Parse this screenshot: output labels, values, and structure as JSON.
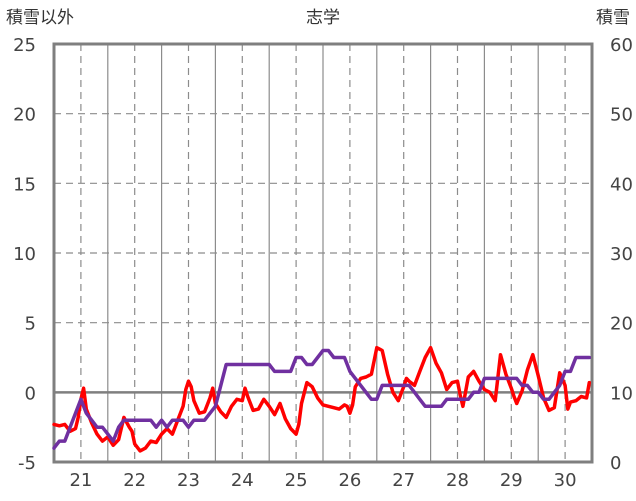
{
  "chart_data": {
    "type": "line",
    "title": "志学",
    "left_axis_label": "積雪以外",
    "right_axis_label": "積雪",
    "left_ylim": [
      -5,
      25
    ],
    "left_ticks": [
      "25",
      "20",
      "15",
      "10",
      "5",
      "0",
      "-5"
    ],
    "right_ylim": [
      0,
      60
    ],
    "right_ticks": [
      "60",
      "50",
      "40",
      "30",
      "20",
      "10",
      "0"
    ],
    "xlim": [
      20.5,
      30.5
    ],
    "x_ticks": [
      "21",
      "22",
      "23",
      "24",
      "25",
      "26",
      "27",
      "28",
      "29",
      "30"
    ],
    "grid": true,
    "series": [
      {
        "axis": "left",
        "color": "#ff0000",
        "x": [
          20.5,
          20.6,
          20.7,
          20.8,
          20.9,
          20.95,
          21.0,
          21.05,
          21.1,
          21.2,
          21.3,
          21.4,
          21.5,
          21.6,
          21.7,
          21.8,
          21.9,
          21.95,
          22.0,
          22.1,
          22.2,
          22.3,
          22.4,
          22.5,
          22.6,
          22.7,
          22.8,
          22.9,
          22.95,
          23.0,
          23.05,
          23.1,
          23.2,
          23.3,
          23.4,
          23.45,
          23.5,
          23.6,
          23.7,
          23.8,
          23.9,
          24.0,
          24.05,
          24.1,
          24.2,
          24.3,
          24.4,
          24.5,
          24.6,
          24.7,
          24.8,
          24.9,
          25.0,
          25.05,
          25.1,
          25.2,
          25.3,
          25.4,
          25.5,
          25.6,
          25.7,
          25.8,
          25.9,
          25.95,
          26.0,
          26.05,
          26.1,
          26.2,
          26.3,
          26.4,
          26.5,
          26.6,
          26.7,
          26.8,
          26.9,
          27.0,
          27.05,
          27.1,
          27.2,
          27.3,
          27.4,
          27.5,
          27.6,
          27.7,
          27.8,
          27.9,
          28.0,
          28.05,
          28.1,
          28.2,
          28.3,
          28.4,
          28.5,
          28.6,
          28.7,
          28.8,
          28.9,
          29.0,
          29.05,
          29.1,
          29.2,
          29.3,
          29.4,
          29.5,
          29.6,
          29.7,
          29.8,
          29.9,
          30.0,
          30.05,
          30.1,
          30.2,
          30.3,
          30.4,
          30.45
        ],
        "y": [
          -2.3,
          -2.4,
          -2.3,
          -2.8,
          -2.6,
          -1.8,
          -0.5,
          0.3,
          -1.2,
          -2.2,
          -3.0,
          -3.5,
          -3.2,
          -3.8,
          -3.4,
          -1.8,
          -2.5,
          -2.8,
          -3.7,
          -4.2,
          -4.0,
          -3.5,
          -3.6,
          -3.0,
          -2.6,
          -3.0,
          -2.0,
          -1.0,
          0.2,
          0.8,
          0.4,
          -0.6,
          -1.5,
          -1.4,
          -0.4,
          0.3,
          -0.8,
          -1.4,
          -1.8,
          -1.0,
          -0.5,
          -0.6,
          0.3,
          -0.3,
          -1.3,
          -1.2,
          -0.5,
          -1.0,
          -1.6,
          -0.8,
          -1.9,
          -2.6,
          -3.0,
          -2.3,
          -0.8,
          0.7,
          0.4,
          -0.4,
          -0.9,
          -1.0,
          -1.1,
          -1.2,
          -0.9,
          -1.0,
          -1.5,
          -0.9,
          0.4,
          1.0,
          1.1,
          1.3,
          3.2,
          3.0,
          1.3,
          0.0,
          -0.6,
          0.4,
          1.0,
          0.8,
          0.5,
          1.5,
          2.5,
          3.2,
          2.1,
          1.4,
          0.2,
          0.7,
          0.8,
          -0.2,
          -1.0,
          1.1,
          1.5,
          0.8,
          0.2,
          0.0,
          -0.6,
          2.7,
          1.3,
          0.3,
          -0.3,
          -0.8,
          0.1,
          1.6,
          2.7,
          1.2,
          -0.4,
          -1.3,
          -1.1,
          1.4,
          0.5,
          -1.2,
          -0.7,
          -0.6,
          -0.3,
          -0.4,
          0.7
        ]
      },
      {
        "axis": "right",
        "color": "#7030a0",
        "x": [
          20.5,
          20.6,
          20.7,
          20.8,
          20.9,
          21.0,
          21.1,
          21.2,
          21.3,
          21.4,
          21.5,
          21.6,
          21.7,
          21.8,
          21.9,
          22.0,
          22.1,
          22.2,
          22.3,
          22.4,
          22.5,
          22.6,
          22.7,
          22.8,
          22.9,
          23.0,
          23.1,
          23.2,
          23.3,
          23.4,
          23.5,
          23.6,
          23.7,
          23.8,
          23.9,
          24.0,
          24.1,
          24.2,
          24.3,
          24.4,
          24.5,
          24.6,
          24.7,
          24.8,
          24.9,
          25.0,
          25.1,
          25.2,
          25.3,
          25.4,
          25.5,
          25.6,
          25.7,
          25.8,
          25.9,
          26.0,
          26.1,
          26.2,
          26.3,
          26.4,
          26.5,
          26.6,
          26.7,
          26.8,
          26.9,
          27.0,
          27.1,
          27.2,
          27.3,
          27.4,
          27.5,
          27.6,
          27.7,
          27.8,
          27.9,
          28.0,
          28.1,
          28.2,
          28.3,
          28.4,
          28.5,
          28.6,
          28.7,
          28.8,
          28.9,
          29.0,
          29.1,
          29.2,
          29.3,
          29.4,
          29.5,
          29.6,
          29.7,
          29.8,
          29.9,
          30.0,
          30.1,
          30.2,
          30.3,
          30.4,
          30.45
        ],
        "y": [
          2,
          3,
          3,
          5,
          7,
          9,
          7,
          6,
          5,
          5,
          4,
          3,
          5,
          6,
          6,
          6,
          6,
          6,
          6,
          5,
          6,
          5,
          6,
          6,
          6,
          5,
          6,
          6,
          6,
          7,
          8,
          11,
          14,
          14,
          14,
          14,
          14,
          14,
          14,
          14,
          14,
          13,
          13,
          13,
          13,
          15,
          15,
          14,
          14,
          15,
          16,
          16,
          15,
          15,
          15,
          13,
          12,
          11,
          10,
          9,
          9,
          11,
          11,
          11,
          11,
          11,
          11,
          10,
          9,
          8,
          8,
          8,
          8,
          9,
          9,
          9,
          9,
          9,
          10,
          10,
          12,
          12,
          12,
          12,
          12,
          12,
          12,
          11,
          11,
          10,
          10,
          9,
          9,
          10,
          11,
          13,
          13,
          15,
          15,
          15,
          15
        ]
      }
    ]
  }
}
